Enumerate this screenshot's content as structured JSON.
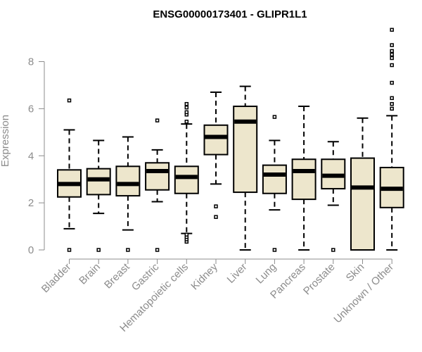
{
  "chart_data": {
    "type": "boxplot",
    "title": "ENSG00000173401 - GLIPR1L1",
    "xlabel": "",
    "ylabel": "Expression",
    "ylim": [
      0,
      9.5
    ],
    "yticks": [
      0,
      2,
      4,
      6,
      8
    ],
    "grid": false,
    "colors": {
      "box_fill": "#ede6cc",
      "box_stroke": "#000000",
      "axis": "#8c8c8c",
      "text": "#8c8c8c"
    },
    "categories": [
      "Bladder",
      "Brain",
      "Breast",
      "Gastric",
      "Hematopoietic cells",
      "Kidney",
      "Liver",
      "Lung",
      "Pancreas",
      "Prostate",
      "Skin",
      "Unknown / Other"
    ],
    "boxes": [
      {
        "category": "Bladder",
        "whisker_low": 0.9,
        "q1": 2.25,
        "median": 2.8,
        "q3": 3.4,
        "whisker_high": 5.1,
        "outliers": [
          0.0,
          6.35
        ]
      },
      {
        "category": "Brain",
        "whisker_low": 1.55,
        "q1": 2.35,
        "median": 3.0,
        "q3": 3.45,
        "whisker_high": 4.65,
        "outliers": [
          0.0
        ]
      },
      {
        "category": "Breast",
        "whisker_low": 0.85,
        "q1": 2.3,
        "median": 2.8,
        "q3": 3.55,
        "whisker_high": 4.8,
        "outliers": [
          0.0
        ]
      },
      {
        "category": "Gastric",
        "whisker_low": 2.05,
        "q1": 2.55,
        "median": 3.35,
        "q3": 3.7,
        "whisker_high": 4.25,
        "outliers": [
          0.0,
          5.5
        ]
      },
      {
        "category": "Hematopoietic cells",
        "whisker_low": 0.7,
        "q1": 2.4,
        "median": 3.1,
        "q3": 3.55,
        "whisker_high": 5.35,
        "outliers": [
          0.35,
          0.45,
          0.55,
          0.65,
          5.45,
          5.75,
          5.85,
          6.05,
          6.2
        ]
      },
      {
        "category": "Kidney",
        "whisker_low": 2.8,
        "q1": 4.05,
        "median": 4.8,
        "q3": 5.3,
        "whisker_high": 6.7,
        "outliers": [
          1.4,
          1.85
        ]
      },
      {
        "category": "Liver",
        "whisker_low": 0.0,
        "q1": 2.45,
        "median": 5.45,
        "q3": 6.1,
        "whisker_high": 6.95,
        "outliers": []
      },
      {
        "category": "Lung",
        "whisker_low": 1.7,
        "q1": 2.4,
        "median": 3.2,
        "q3": 3.6,
        "whisker_high": 4.65,
        "outliers": [
          0.0,
          5.65
        ]
      },
      {
        "category": "Pancreas",
        "whisker_low": 0.0,
        "q1": 2.15,
        "median": 3.35,
        "q3": 3.85,
        "whisker_high": 6.1,
        "outliers": []
      },
      {
        "category": "Prostate",
        "whisker_low": 1.9,
        "q1": 2.6,
        "median": 3.15,
        "q3": 3.85,
        "whisker_high": 4.6,
        "outliers": [
          0.0
        ]
      },
      {
        "category": "Skin",
        "whisker_low": 0.0,
        "q1": 0.0,
        "median": 2.65,
        "q3": 3.9,
        "whisker_high": 5.6,
        "outliers": []
      },
      {
        "category": "Unknown / Other",
        "whisker_low": 0.0,
        "q1": 1.8,
        "median": 2.6,
        "q3": 3.5,
        "whisker_high": 5.7,
        "outliers": [
          6.0,
          6.2,
          6.45,
          7.1,
          7.85,
          8.15,
          8.3,
          8.45,
          8.7,
          9.35
        ]
      }
    ]
  }
}
